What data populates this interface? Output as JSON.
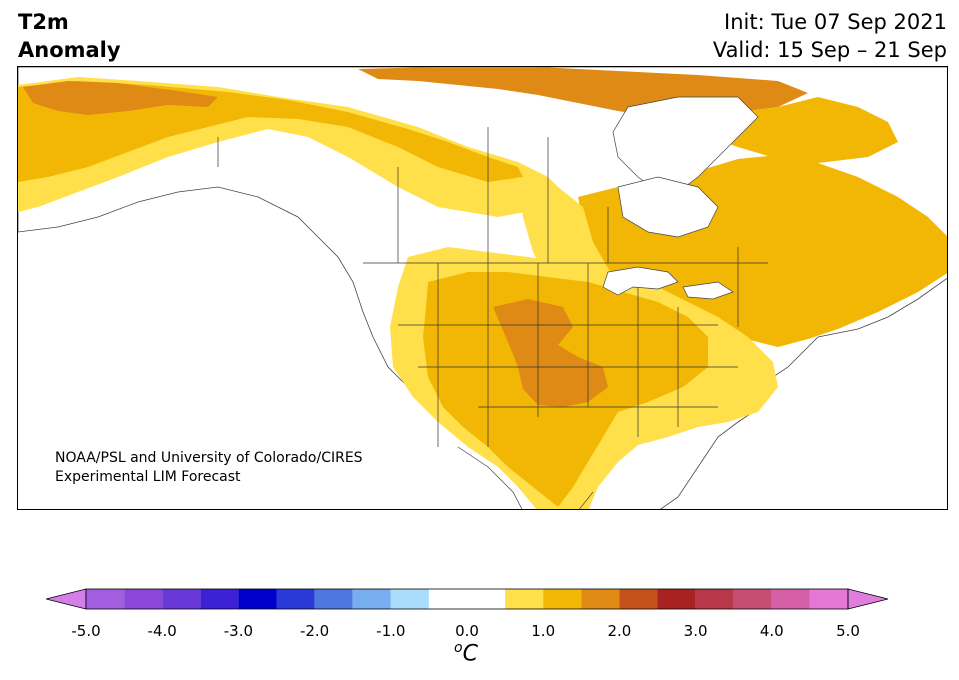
{
  "header": {
    "title_line1": "T2m",
    "title_line2": "Anomaly",
    "init": "Init: Tue 07 Sep 2021",
    "valid": "Valid: 15 Sep – 21 Sep"
  },
  "credit": {
    "line1": "NOAA/PSL and University of Colorado/CIRES",
    "line2": "Experimental LIM Forecast"
  },
  "colorbar": {
    "unit_sup": "o",
    "unit_main": "C",
    "ticks": [
      "-5.0",
      "-4.0",
      "-3.0",
      "-2.0",
      "-1.0",
      "0.0",
      "1.0",
      "2.0",
      "3.0",
      "4.0",
      "5.0"
    ],
    "bins": [
      {
        "from": -5.0,
        "to": -4.5,
        "color": "#a35ee0"
      },
      {
        "from": -4.5,
        "to": -4.0,
        "color": "#8b48d8"
      },
      {
        "from": -4.0,
        "to": -3.5,
        "color": "#6a38d6"
      },
      {
        "from": -3.5,
        "to": -3.0,
        "color": "#3c22d4"
      },
      {
        "from": -3.0,
        "to": -2.5,
        "color": "#0000cc"
      },
      {
        "from": -2.5,
        "to": -2.0,
        "color": "#2a3ad6"
      },
      {
        "from": -2.0,
        "to": -1.5,
        "color": "#4c78e0"
      },
      {
        "from": -1.5,
        "to": -1.0,
        "color": "#76aef0"
      },
      {
        "from": -1.0,
        "to": -0.5,
        "color": "#aadcfc"
      },
      {
        "from": -0.5,
        "to": 0.5,
        "color": "#ffffff"
      },
      {
        "from": 0.5,
        "to": 1.0,
        "color": "#ffe04a"
      },
      {
        "from": 1.0,
        "to": 1.5,
        "color": "#f2b705"
      },
      {
        "from": 1.5,
        "to": 2.0,
        "color": "#de8a14"
      },
      {
        "from": 2.0,
        "to": 2.5,
        "color": "#c4521a"
      },
      {
        "from": 2.5,
        "to": 3.0,
        "color": "#a82222"
      },
      {
        "from": 3.0,
        "to": 3.5,
        "color": "#b8384a"
      },
      {
        "from": 3.5,
        "to": 4.0,
        "color": "#c64e74"
      },
      {
        "from": 4.0,
        "to": 4.5,
        "color": "#d660a8"
      },
      {
        "from": 4.5,
        "to": 5.0,
        "color": "#e478d4"
      }
    ],
    "extend_low_color": "#d47ee8",
    "extend_high_color": "#e07ee0"
  },
  "map_colors": {
    "anom_0_5_to_1_0": "#ffe04a",
    "anom_1_0_to_1_5": "#f2b705",
    "anom_1_5_to_2_0": "#de8a14",
    "land_neutral": "#ffffff",
    "border": "#333333"
  }
}
